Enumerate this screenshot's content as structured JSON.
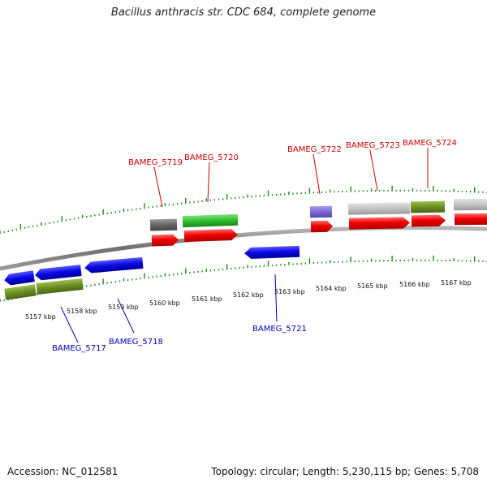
{
  "title": "Bacillus anthracis str. CDC 684, complete genome",
  "accession": "Accession: NC_012581",
  "summary": "Topology: circular; Length: 5,230,115 bp; Genes: 5,708",
  "colors": {
    "forward_label": "#cc0000",
    "reverse_label": "#0000bb",
    "cds_red": "#ee0000",
    "cds_blue": "#0a0ae6",
    "olive": "#6b8e23",
    "green": "#2ebd2e",
    "grey": "#666666",
    "light_grey": "#c4c4c4",
    "lavender": "#7b68d8",
    "tick_green": "#1a8a1a",
    "backbone": "#777777"
  },
  "scale_labels": [
    "5157 kbp",
    "5158 kbp",
    "5159 kbp",
    "5160 kbp",
    "5161 kbp",
    "5162 kbp",
    "5163 kbp",
    "5164 kbp",
    "5165 kbp",
    "5166 kbp",
    "5167 kbp"
  ],
  "forward_gene_labels": [
    "BAMEG_5719",
    "BAMEG_5720",
    "BAMEG_5722",
    "BAMEG_5723",
    "BAMEG_5724"
  ],
  "reverse_gene_labels": [
    "BAMEG_5717",
    "BAMEG_5718",
    "BAMEG_5721"
  ]
}
